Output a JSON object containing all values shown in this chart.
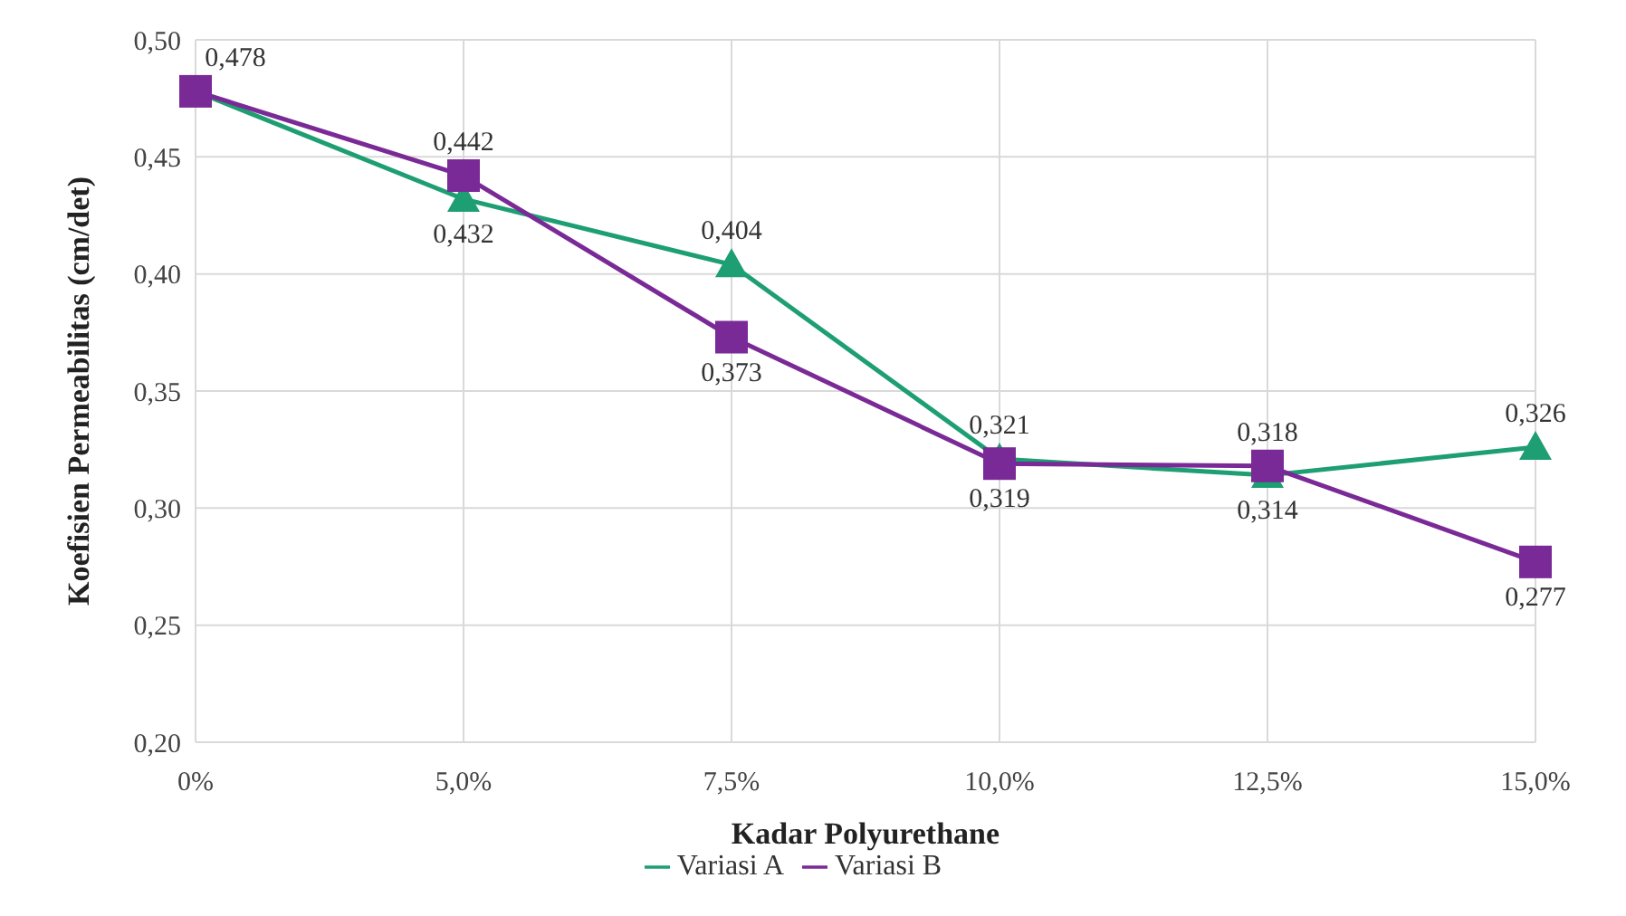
{
  "chart_data": {
    "type": "line",
    "xlabel": "Kadar Polyurethane",
    "ylabel": "Koefisien Permeabilitas  (cm/det)",
    "categories": [
      "0%",
      "5,0%",
      "7,5%",
      "10,0%",
      "12,5%",
      "15,0%"
    ],
    "series": [
      {
        "name": "Variasi A",
        "color": "#1e9e73",
        "marker": "triangle",
        "values": [
          0.478,
          0.432,
          0.404,
          0.321,
          0.314,
          0.326
        ],
        "value_labels": [
          null,
          "0,432",
          "0,404",
          "0,321",
          "0,314",
          "0,326"
        ]
      },
      {
        "name": "Variasi B",
        "color": "#7a2a96",
        "marker": "square",
        "values": [
          0.478,
          0.442,
          0.373,
          0.319,
          0.318,
          0.277
        ],
        "value_labels": [
          "0,478",
          "0,442",
          "0,373",
          "0,319",
          "0,318",
          "0,277"
        ]
      }
    ],
    "ylim": [
      0.2,
      0.5
    ],
    "yticks": [
      {
        "value": 0.2,
        "label": "0,20"
      },
      {
        "value": 0.25,
        "label": "0,25"
      },
      {
        "value": 0.3,
        "label": "0,30"
      },
      {
        "value": 0.35,
        "label": "0,35"
      },
      {
        "value": 0.4,
        "label": "0,40"
      },
      {
        "value": 0.45,
        "label": "0,45"
      },
      {
        "value": 0.5,
        "label": "0,50"
      }
    ],
    "grid": true,
    "legend": "bottom"
  }
}
